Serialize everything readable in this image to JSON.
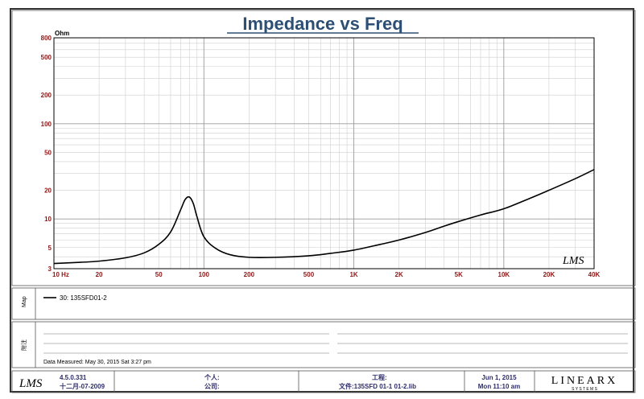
{
  "chart_data": {
    "type": "line",
    "title": "Impedance vs Freq",
    "ylabel": "Ohm",
    "x_scale": "log",
    "y_scale": "log",
    "xlim": [
      10,
      40000
    ],
    "ylim": [
      3,
      800
    ],
    "grid": true,
    "x_ticks": [
      {
        "value": 10,
        "label": "10  Hz"
      },
      {
        "value": 20,
        "label": "20"
      },
      {
        "value": 50,
        "label": "50"
      },
      {
        "value": 100,
        "label": "100"
      },
      {
        "value": 200,
        "label": "200"
      },
      {
        "value": 500,
        "label": "500"
      },
      {
        "value": 1000,
        "label": "1K"
      },
      {
        "value": 2000,
        "label": "2K"
      },
      {
        "value": 5000,
        "label": "5K"
      },
      {
        "value": 10000,
        "label": "10K"
      },
      {
        "value": 20000,
        "label": "20K"
      },
      {
        "value": 40000,
        "label": "40K"
      }
    ],
    "y_ticks": [
      {
        "value": 800,
        "label": "800"
      },
      {
        "value": 500,
        "label": "500"
      },
      {
        "value": 200,
        "label": "200"
      },
      {
        "value": 100,
        "label": "100"
      },
      {
        "value": 50,
        "label": "50"
      },
      {
        "value": 20,
        "label": "20"
      },
      {
        "value": 10,
        "label": "10"
      },
      {
        "value": 5,
        "label": "5"
      },
      {
        "value": 3,
        "label": "3"
      }
    ],
    "series": [
      {
        "name": "30: 135SFD01-2",
        "color": "#000000",
        "x": [
          10,
          15,
          20,
          30,
          40,
          50,
          60,
          70,
          75,
          80,
          85,
          90,
          100,
          120,
          150,
          200,
          300,
          500,
          700,
          1000,
          1500,
          2000,
          3000,
          4000,
          5000,
          7000,
          10000,
          15000,
          20000,
          30000,
          40000
        ],
        "y": [
          3.4,
          3.5,
          3.6,
          3.9,
          4.4,
          5.4,
          7.3,
          12.5,
          16.0,
          17.0,
          14.5,
          10.5,
          6.5,
          4.9,
          4.2,
          3.95,
          3.95,
          4.1,
          4.35,
          4.7,
          5.4,
          6.0,
          7.2,
          8.4,
          9.4,
          11.0,
          12.8,
          16.5,
          20.0,
          26.5,
          33.0
        ]
      }
    ],
    "watermark": "LMS"
  },
  "legend": {
    "side_label": "Map",
    "entry": "30: 135SFD01-2"
  },
  "notes": {
    "side_label": "附注",
    "measured": "Data Measured: May 30, 2015  Sat  3:27 pm"
  },
  "footer": {
    "logo": "LMS",
    "version": "4.5.0.331",
    "version_date": "十二月-07-2009",
    "person_label": "个人:",
    "company_label": "公司:",
    "project_label": "工程:",
    "file_label": "文件:135SFD 01-1  01-2.lib",
    "date": "Jun  1, 2015",
    "time": "Mon 11:10 am",
    "brand": "LINEARX",
    "brand_sub": "S Y S T E M S"
  }
}
